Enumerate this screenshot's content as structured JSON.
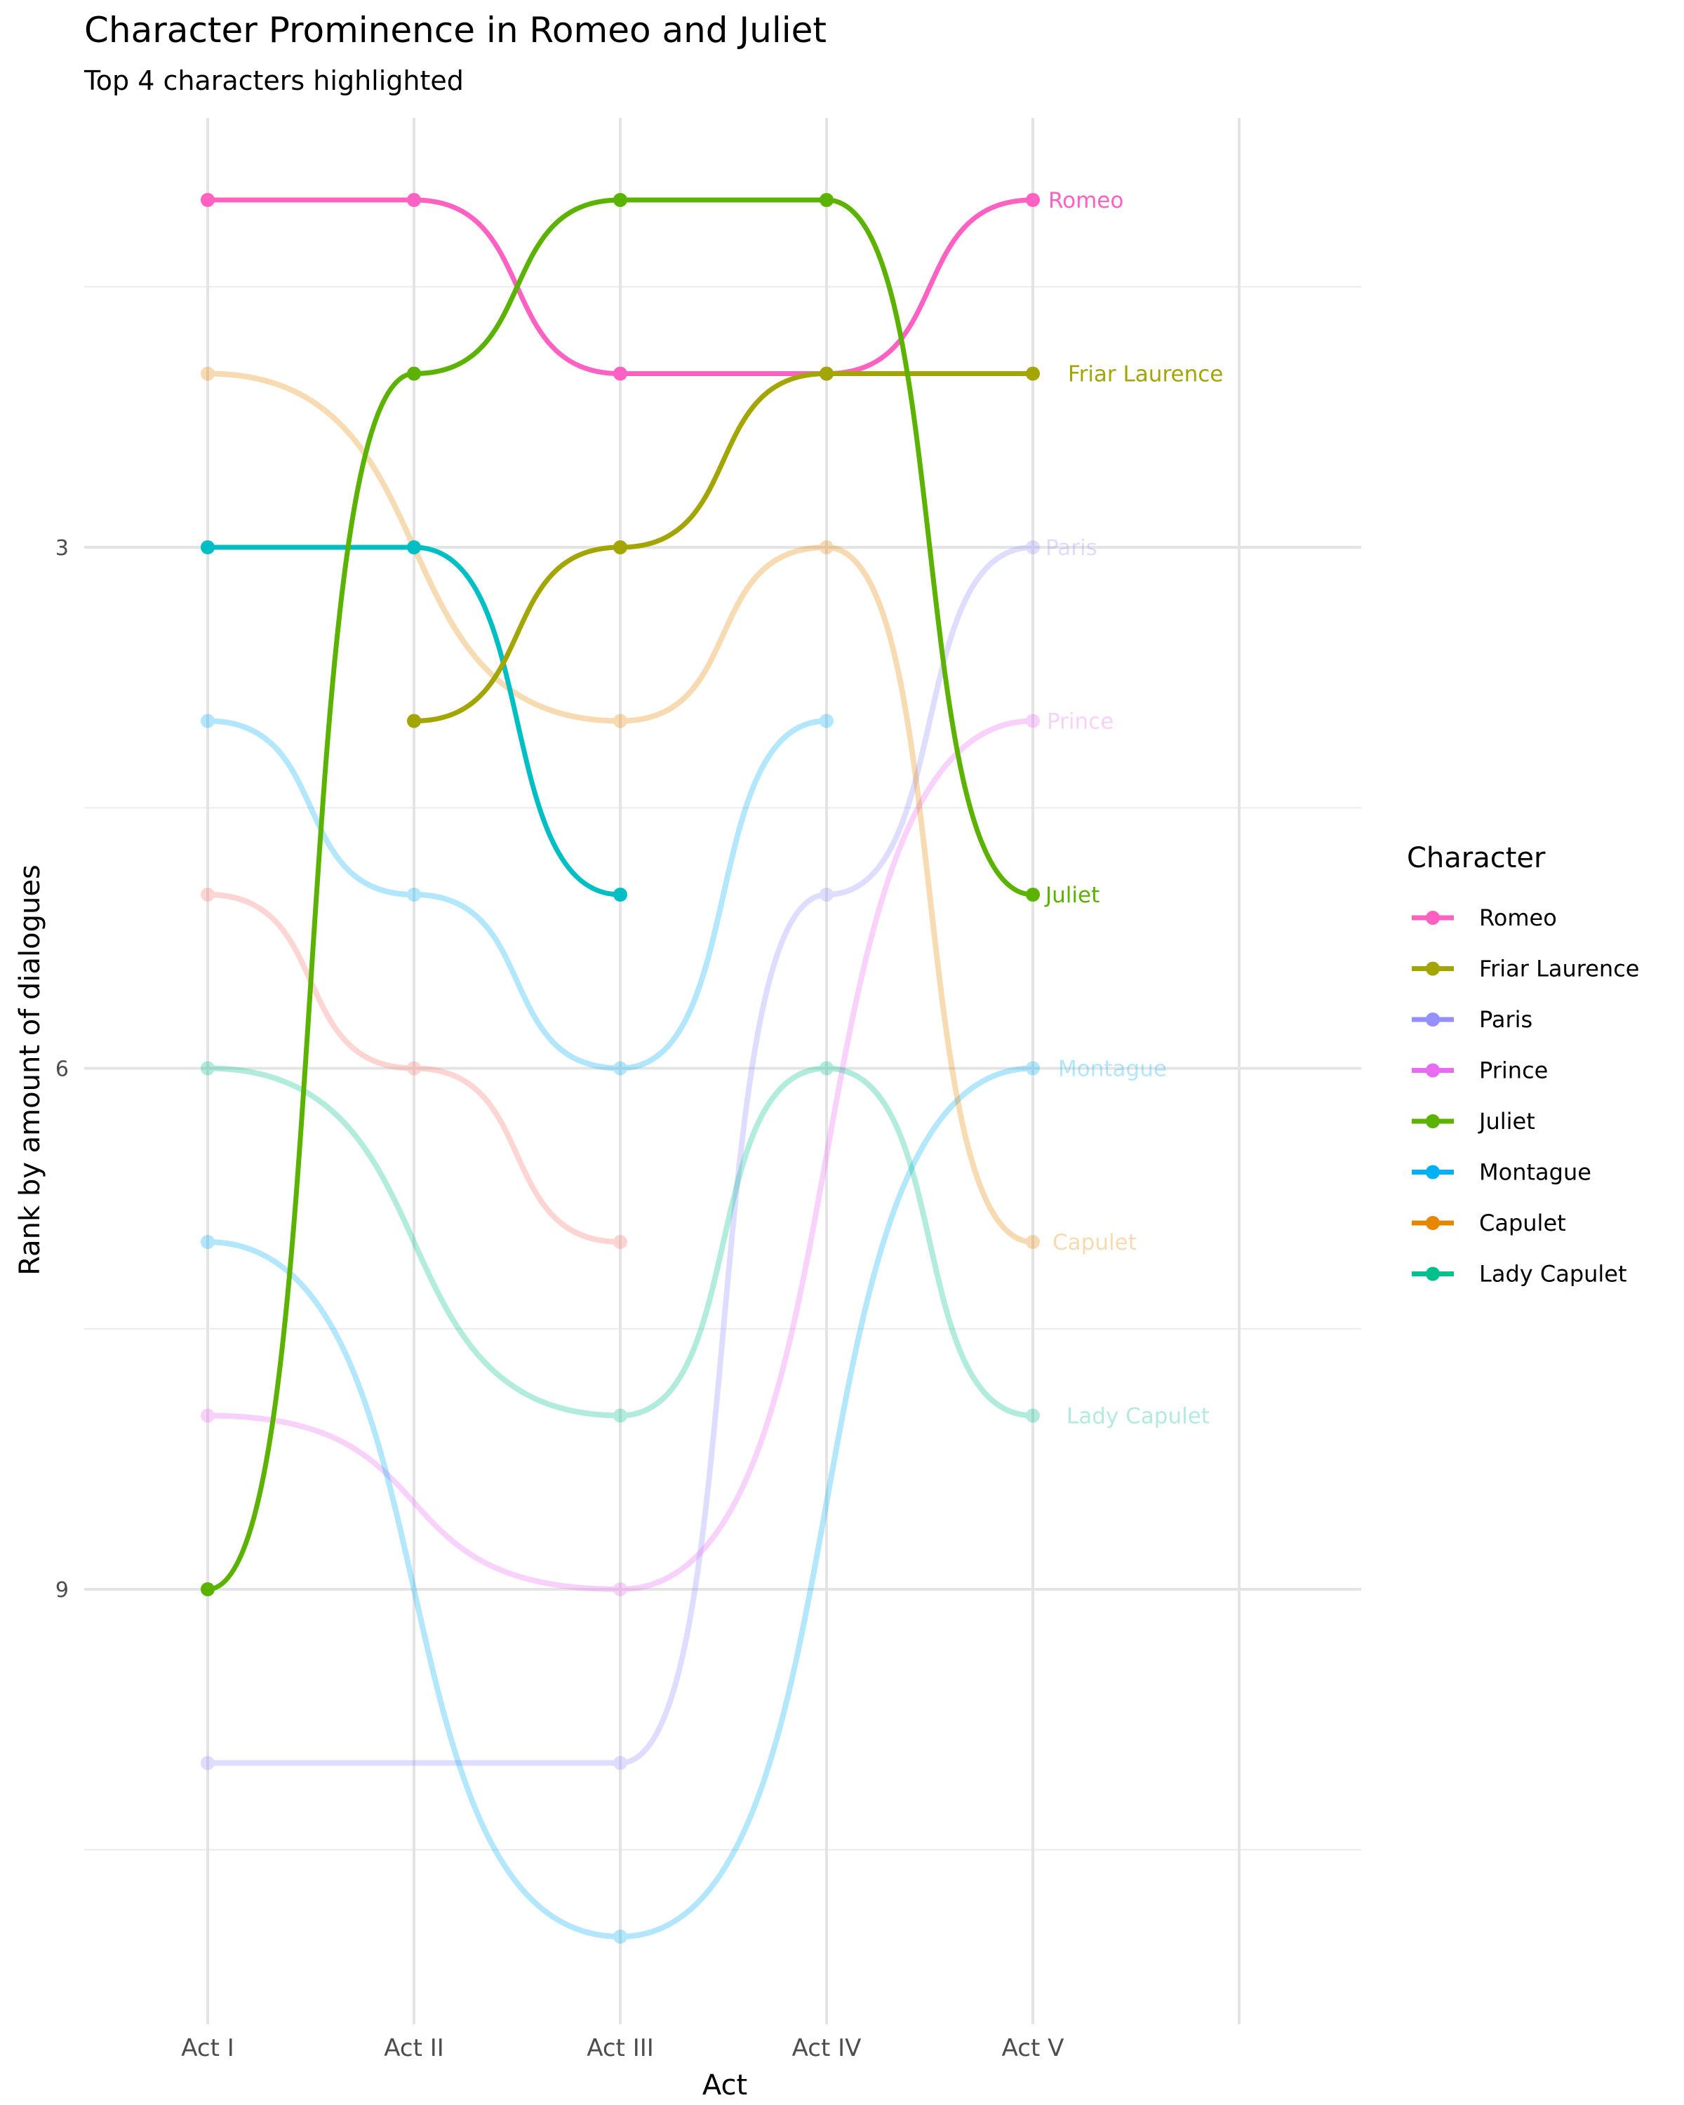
{
  "chart_data": {
    "type": "line",
    "title": "Character Prominence in Romeo and Juliet",
    "subtitle": "Top 4 characters highlighted",
    "xlabel": "Act",
    "ylabel": "Rank by amount of dialogues",
    "categories": [
      "Act I",
      "Act II",
      "Act III",
      "Act IV",
      "Act V"
    ],
    "y_ticks": [
      3,
      6,
      9
    ],
    "ylim": [
      1,
      11
    ],
    "y_reversed": true,
    "grid": true,
    "legend": {
      "title": "Character",
      "position": "right"
    },
    "series": [
      {
        "name": "Romeo",
        "color": "#FF61C3",
        "highlighted": true,
        "values": [
          1,
          1,
          2,
          2,
          1
        ]
      },
      {
        "name": "Friar Laurence",
        "color": "#A3A500",
        "highlighted": true,
        "values": [
          null,
          4,
          3,
          2,
          2
        ]
      },
      {
        "name": "Paris",
        "color": "#9590FF",
        "highlighted": false,
        "values": [
          10,
          null,
          10,
          5,
          3
        ]
      },
      {
        "name": "Prince",
        "color": "#E76BF3",
        "highlighted": false,
        "values": [
          8,
          null,
          9,
          null,
          4
        ]
      },
      {
        "name": "Juliet",
        "color": "#5BB300",
        "highlighted": true,
        "values": [
          9,
          2,
          1,
          1,
          5
        ]
      },
      {
        "name": "Montague",
        "color": "#00B0F6",
        "highlighted": false,
        "values": [
          7,
          null,
          11,
          null,
          6
        ]
      },
      {
        "name": "Capulet",
        "color": "#E58700",
        "highlighted": false,
        "values": [
          2,
          null,
          4,
          3,
          7
        ]
      },
      {
        "name": "Lady Capulet",
        "color": "#00C08B",
        "highlighted": false,
        "values": [
          6,
          null,
          8,
          6,
          8
        ]
      }
    ],
    "unlabeled_series": [
      {
        "color": "#00BFC4",
        "highlighted": true,
        "values": [
          3,
          3,
          5,
          null,
          null
        ]
      },
      {
        "color": "#F8766D",
        "highlighted": false,
        "values": [
          5,
          6,
          7,
          null,
          null
        ]
      },
      {
        "color": "#00B0F6",
        "highlighted": false,
        "values": [
          4,
          5,
          6,
          4,
          null
        ]
      }
    ]
  }
}
